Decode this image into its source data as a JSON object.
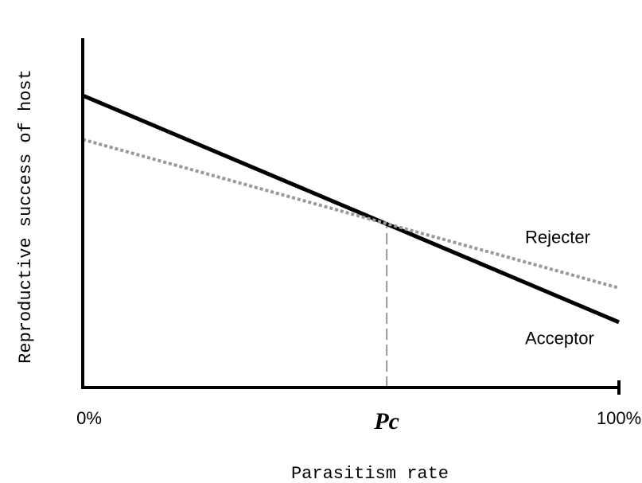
{
  "chart_data": {
    "type": "line",
    "x_label": "Parasitism rate",
    "y_label": "Reproductive success of host",
    "x": [
      0,
      100
    ],
    "series": [
      {
        "name": "Acceptor",
        "color": "#000000",
        "values": [
          83.6,
          18.7
        ]
      },
      {
        "name": "Rejecter",
        "color": "#999999",
        "values": [
          71,
          28.5
        ]
      }
    ],
    "xlim": [
      0,
      100
    ],
    "xticks": [
      {
        "value": 0,
        "label": "0%"
      },
      {
        "value": 56.7,
        "label": "Pc"
      },
      {
        "value": 100,
        "label": "100%"
      }
    ],
    "ylim": [
      0,
      100
    ]
  }
}
